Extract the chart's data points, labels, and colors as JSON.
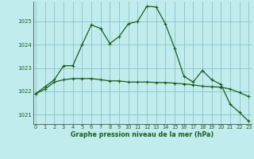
{
  "title": "Graphe pression niveau de la mer (hPa)",
  "background_color": "#c0ecee",
  "grid_color": "#90c0c4",
  "line_color": "#1a5e1a",
  "xlim": [
    -0.3,
    23.3
  ],
  "ylim": [
    1020.6,
    1025.85
  ],
  "yticks": [
    1021,
    1022,
    1023,
    1024,
    1025
  ],
  "xticks": [
    0,
    1,
    2,
    3,
    4,
    5,
    6,
    7,
    8,
    9,
    10,
    11,
    12,
    13,
    14,
    15,
    16,
    17,
    18,
    19,
    20,
    21,
    22,
    23
  ],
  "series1_x": [
    0,
    1,
    2,
    3,
    4,
    5,
    6,
    7,
    8,
    9,
    10,
    11,
    12,
    13,
    14,
    15,
    16,
    17,
    18,
    19,
    20,
    21,
    22,
    23
  ],
  "series1_y": [
    1021.9,
    1022.2,
    1022.5,
    1023.1,
    1023.1,
    1024.0,
    1024.85,
    1024.7,
    1024.05,
    1024.35,
    1024.9,
    1025.0,
    1025.65,
    1025.62,
    1024.9,
    1023.85,
    1022.65,
    1022.4,
    1022.9,
    1022.5,
    1022.3,
    1021.45,
    1021.1,
    1020.72
  ],
  "series2_x": [
    0,
    1,
    2,
    3,
    4,
    5,
    6,
    7,
    8,
    9,
    10,
    11,
    12,
    13,
    14,
    15,
    16,
    17,
    18,
    19,
    20,
    21,
    22,
    23
  ],
  "series2_y": [
    1021.9,
    1022.1,
    1022.4,
    1022.5,
    1022.55,
    1022.55,
    1022.55,
    1022.5,
    1022.45,
    1022.45,
    1022.4,
    1022.4,
    1022.4,
    1022.38,
    1022.38,
    1022.35,
    1022.32,
    1022.28,
    1022.22,
    1022.2,
    1022.18,
    1022.1,
    1021.95,
    1021.78
  ]
}
